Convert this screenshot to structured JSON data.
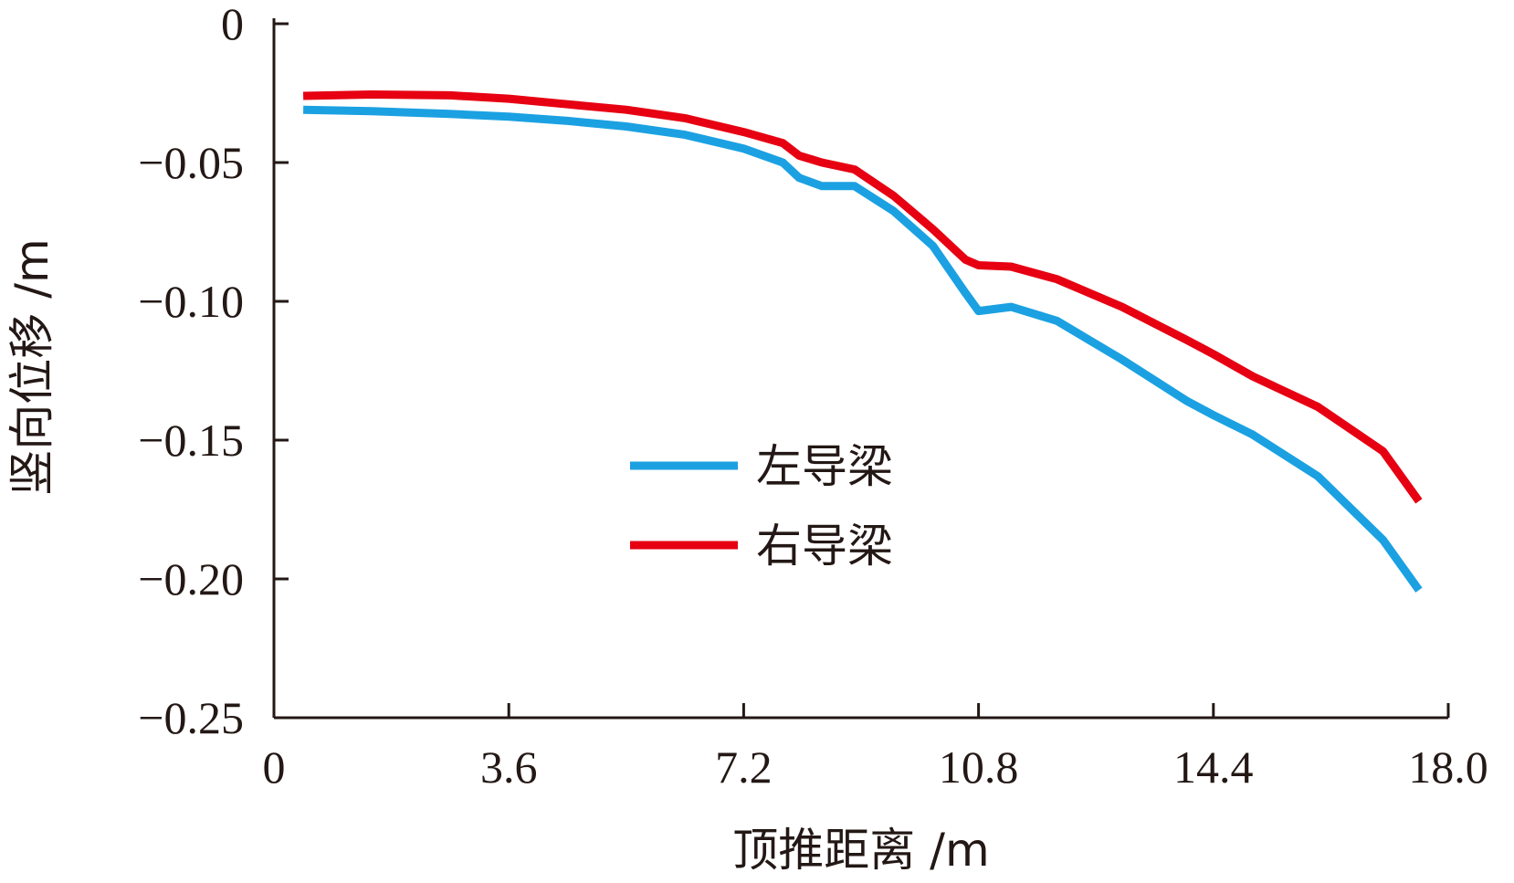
{
  "chart_data": {
    "type": "line",
    "title": "",
    "xlabel": "顶推距离 /m",
    "ylabel": "竖向位移 /m",
    "xlim": [
      0,
      18.0
    ],
    "ylim": [
      -0.25,
      0
    ],
    "x_ticks": [
      0,
      3.6,
      7.2,
      10.8,
      14.4,
      18.0
    ],
    "x_tick_labels": [
      "0",
      "3.6",
      "7.2",
      "10.8",
      "14.4",
      "18.0"
    ],
    "y_ticks": [
      0,
      -0.05,
      -0.1,
      -0.15,
      -0.2,
      -0.25
    ],
    "y_tick_labels": [
      "0",
      "−0.05",
      "−0.10",
      "−0.15",
      "−0.20",
      "−0.25"
    ],
    "grid": false,
    "legend_position": "center",
    "series": [
      {
        "name": "左导梁",
        "color": "#1BA1E2",
        "x": [
          0.45,
          1.5,
          2.7,
          3.6,
          4.5,
          5.4,
          6.3,
          7.2,
          7.8,
          8.05,
          8.4,
          8.9,
          9.5,
          10.1,
          10.6,
          10.8,
          11.3,
          12.0,
          13.0,
          14.0,
          14.4,
          15.0,
          16.0,
          17.0,
          17.55
        ],
        "y": [
          -0.031,
          -0.0315,
          -0.0325,
          -0.0335,
          -0.035,
          -0.037,
          -0.04,
          -0.045,
          -0.05,
          -0.0555,
          -0.0585,
          -0.0585,
          -0.0675,
          -0.08,
          -0.097,
          -0.1035,
          -0.102,
          -0.107,
          -0.121,
          -0.136,
          -0.141,
          -0.148,
          -0.163,
          -0.186,
          -0.204
        ]
      },
      {
        "name": "右导梁",
        "color": "#E60012",
        "x": [
          0.45,
          1.5,
          2.7,
          3.6,
          4.5,
          5.4,
          6.3,
          7.2,
          7.8,
          8.05,
          8.4,
          8.9,
          9.5,
          10.1,
          10.6,
          10.8,
          11.3,
          12.0,
          13.0,
          14.0,
          14.4,
          15.0,
          16.0,
          17.0,
          17.55
        ],
        "y": [
          -0.026,
          -0.0255,
          -0.0258,
          -0.027,
          -0.029,
          -0.031,
          -0.034,
          -0.039,
          -0.043,
          -0.0475,
          -0.05,
          -0.0525,
          -0.062,
          -0.074,
          -0.085,
          -0.087,
          -0.0875,
          -0.092,
          -0.102,
          -0.114,
          -0.119,
          -0.127,
          -0.138,
          -0.154,
          -0.172
        ]
      }
    ]
  }
}
